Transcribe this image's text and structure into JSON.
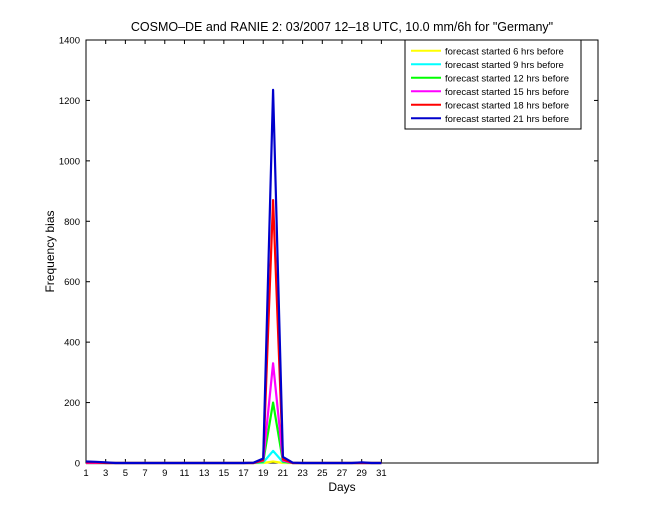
{
  "chart_data": {
    "type": "line",
    "title": "COSMO–DE and RANIE 2: 03/2007 12–18 UTC, 10.0 mm/6h for \"Germany\"",
    "xlabel": "Days",
    "ylabel": "Frequency bias",
    "xlim": [
      1,
      53
    ],
    "ylim": [
      0,
      1400
    ],
    "xticks": [
      1,
      3,
      5,
      7,
      9,
      11,
      13,
      15,
      17,
      19,
      21,
      23,
      25,
      27,
      29,
      31
    ],
    "yticks": [
      0,
      200,
      400,
      600,
      800,
      1000,
      1200,
      1400
    ],
    "grid": false,
    "legend_position": "top-right",
    "series": [
      {
        "name": "forecast started 6 hrs before",
        "color": "#ffff00",
        "x": [
          1,
          2,
          3,
          4,
          5,
          6,
          7,
          8,
          9,
          10,
          11,
          12,
          13,
          14,
          15,
          16,
          17,
          18,
          19,
          20,
          21,
          22,
          23,
          24,
          25,
          26,
          27,
          28,
          29,
          30,
          31
        ],
        "y": [
          0,
          0,
          0,
          0,
          0,
          0,
          0,
          0,
          0,
          0,
          0,
          0,
          0,
          0,
          0,
          0,
          0,
          0,
          0,
          5,
          0,
          0,
          0,
          0,
          0,
          0,
          0,
          0,
          0,
          0,
          0
        ]
      },
      {
        "name": "forecast started 9 hrs before",
        "color": "#00ffff",
        "x": [
          1,
          2,
          3,
          4,
          5,
          6,
          7,
          8,
          9,
          10,
          11,
          12,
          13,
          14,
          15,
          16,
          17,
          18,
          19,
          20,
          21,
          22,
          23,
          24,
          25,
          26,
          27,
          28,
          29,
          30,
          31
        ],
        "y": [
          0,
          0,
          0,
          0,
          0,
          0,
          0,
          0,
          0,
          0,
          0,
          0,
          0,
          0,
          0,
          0,
          0,
          0,
          2,
          40,
          3,
          0,
          0,
          0,
          0,
          0,
          0,
          0,
          0,
          0,
          0
        ]
      },
      {
        "name": "forecast started 12 hrs before",
        "color": "#00ff00",
        "x": [
          1,
          2,
          3,
          4,
          5,
          6,
          7,
          8,
          9,
          10,
          11,
          12,
          13,
          14,
          15,
          16,
          17,
          18,
          19,
          20,
          21,
          22,
          23,
          24,
          25,
          26,
          27,
          28,
          29,
          30,
          31
        ],
        "y": [
          0,
          0,
          0,
          0,
          0,
          0,
          0,
          0,
          0,
          0,
          0,
          0,
          0,
          0,
          0,
          0,
          0,
          0,
          5,
          200,
          5,
          0,
          0,
          0,
          0,
          0,
          0,
          0,
          0,
          0,
          0
        ]
      },
      {
        "name": "forecast started 15 hrs before",
        "color": "#ff00ff",
        "x": [
          1,
          2,
          3,
          4,
          5,
          6,
          7,
          8,
          9,
          10,
          11,
          12,
          13,
          14,
          15,
          16,
          17,
          18,
          19,
          20,
          21,
          22,
          23,
          24,
          25,
          26,
          27,
          28,
          29,
          30,
          31
        ],
        "y": [
          0,
          0,
          0,
          0,
          0,
          0,
          0,
          0,
          0,
          0,
          0,
          0,
          0,
          0,
          0,
          0,
          0,
          0,
          8,
          330,
          8,
          0,
          0,
          0,
          0,
          0,
          0,
          0,
          0,
          0,
          0
        ]
      },
      {
        "name": "forecast started 18 hrs before",
        "color": "#ff0000",
        "x": [
          1,
          2,
          3,
          4,
          5,
          6,
          7,
          8,
          9,
          10,
          11,
          12,
          13,
          14,
          15,
          16,
          17,
          18,
          19,
          20,
          21,
          22,
          23,
          24,
          25,
          26,
          27,
          28,
          29,
          30,
          31
        ],
        "y": [
          2,
          2,
          0,
          0,
          0,
          0,
          0,
          0,
          0,
          0,
          0,
          0,
          0,
          0,
          0,
          0,
          0,
          0,
          10,
          870,
          12,
          0,
          0,
          0,
          0,
          0,
          0,
          0,
          0,
          0,
          0
        ]
      },
      {
        "name": "forecast started 21 hrs before",
        "color": "#0000cc",
        "x": [
          1,
          2,
          3,
          4,
          5,
          6,
          7,
          8,
          9,
          10,
          11,
          12,
          13,
          14,
          15,
          16,
          17,
          18,
          19,
          20,
          21,
          22,
          23,
          24,
          25,
          26,
          27,
          28,
          29,
          30,
          31
        ],
        "y": [
          5,
          4,
          2,
          0,
          0,
          0,
          0,
          0,
          0,
          0,
          0,
          0,
          0,
          0,
          0,
          0,
          0,
          1,
          15,
          1235,
          20,
          1,
          0,
          0,
          0,
          0,
          0,
          0,
          2,
          0,
          0
        ]
      }
    ]
  }
}
